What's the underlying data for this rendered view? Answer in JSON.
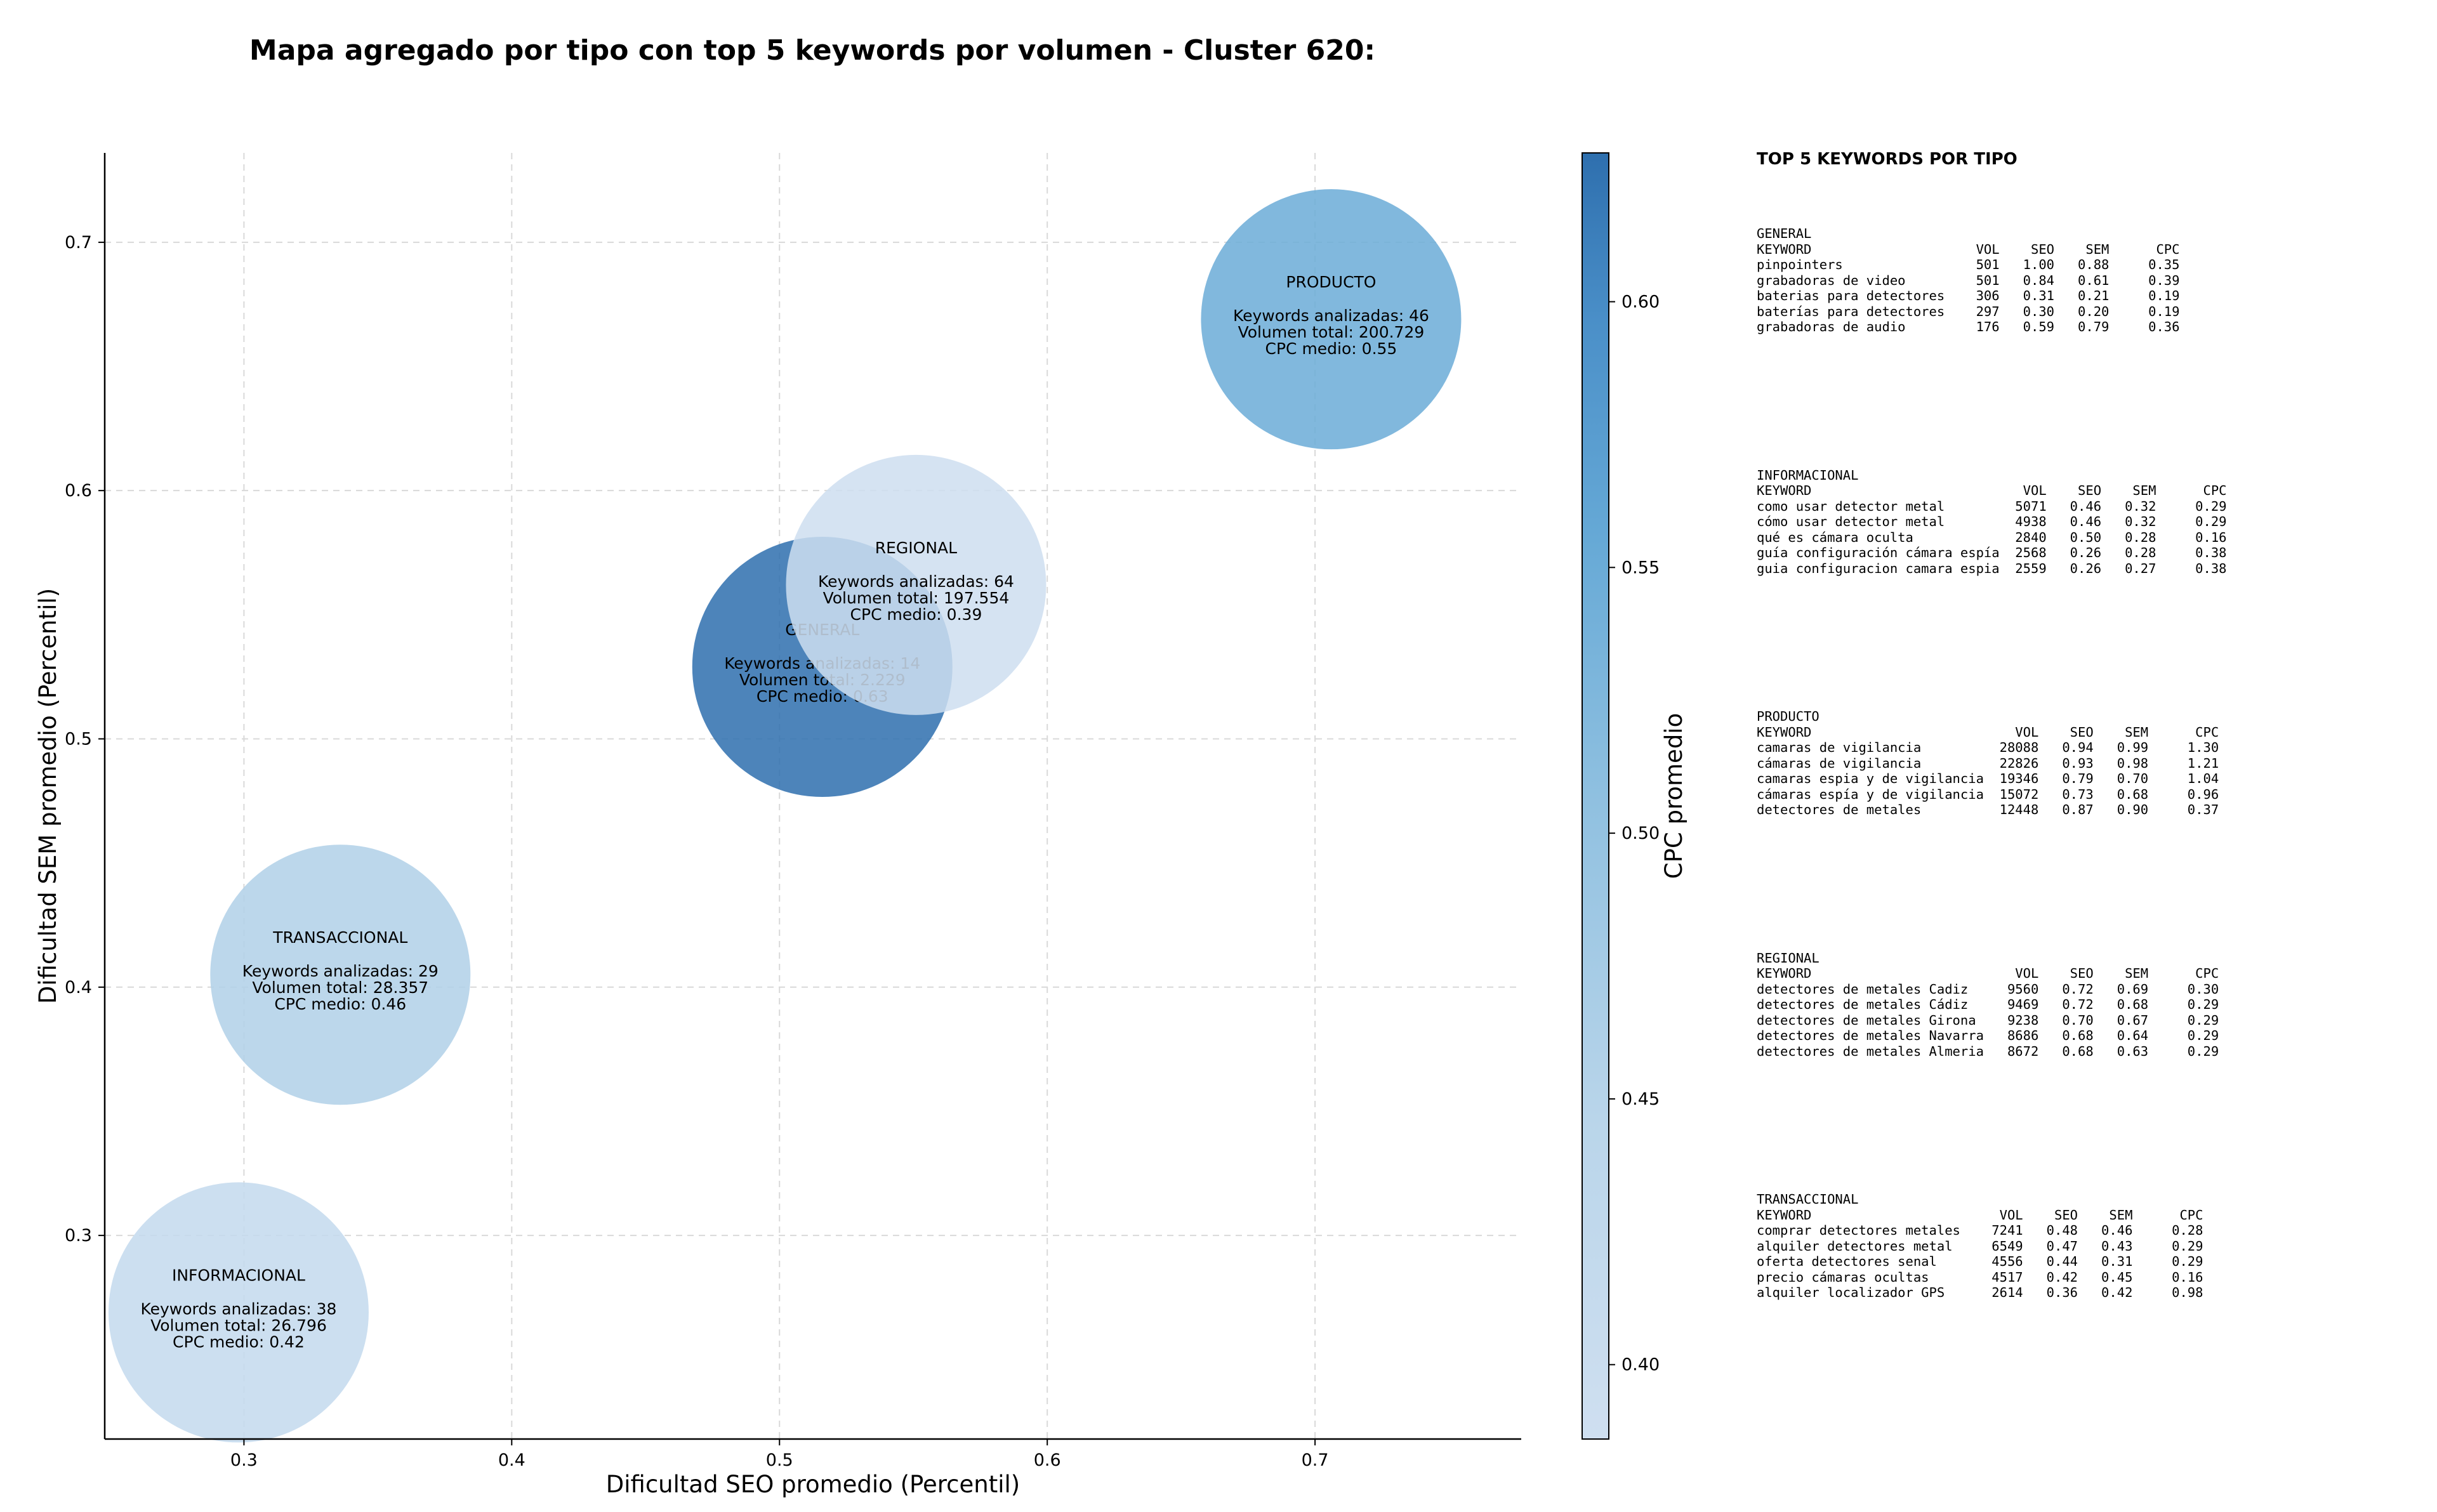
{
  "title": "Mapa agregado por tipo con top 5 keywords por volumen - Cluster 620:",
  "chart_data": {
    "type": "scatter",
    "title": "Mapa agregado por tipo con top 5 keywords por volumen - Cluster 620:",
    "xlabel": "Dificultad SEO promedio (Percentil)",
    "ylabel": "Dificultad SEM promedio (Percentil)",
    "xlim": [
      0.248,
      0.777
    ],
    "ylim": [
      0.218,
      0.736
    ],
    "x_ticks": [
      "0.3",
      "0.4",
      "0.5",
      "0.6",
      "0.7"
    ],
    "y_ticks": [
      "0.3",
      "0.4",
      "0.5",
      "0.6",
      "0.7"
    ],
    "grid": true,
    "colorbar": {
      "label": "CPC promedio",
      "range": [
        0.386,
        0.628
      ],
      "ticks": [
        "0.40",
        "0.45",
        "0.50",
        "0.55",
        "0.60"
      ],
      "color_low": "#cfdff0",
      "color_high": "#2e6fae"
    },
    "bubble_size_meaning": "Keywords analizadas",
    "points": [
      {
        "label": "INFORMACIONAL",
        "x": 0.298,
        "y": 0.269,
        "keywords": 38,
        "volumen": "26.796",
        "cpc": 0.42,
        "lines": [
          "Keywords analizadas: 38",
          "Volumen total: 26.796",
          "CPC medio: 0.42"
        ]
      },
      {
        "label": "TRANSACCIONAL",
        "x": 0.336,
        "y": 0.405,
        "keywords": 29,
        "volumen": "28.357",
        "cpc": 0.46,
        "lines": [
          "Keywords analizadas: 29",
          "Volumen total: 28.357",
          "CPC medio: 0.46"
        ]
      },
      {
        "label": "GENERAL",
        "x": 0.516,
        "y": 0.529,
        "keywords": 14,
        "volumen": "2.229",
        "cpc": 0.63,
        "lines": [
          "Keywords analizadas: 14",
          "Volumen total: 2.229",
          "CPC medio: 0.63"
        ]
      },
      {
        "label": "REGIONAL",
        "x": 0.551,
        "y": 0.562,
        "keywords": 64,
        "volumen": "197.554",
        "cpc": 0.39,
        "lines": [
          "Keywords analizadas: 64",
          "Volumen total: 197.554",
          "CPC medio: 0.39"
        ]
      },
      {
        "label": "PRODUCTO",
        "x": 0.706,
        "y": 0.669,
        "keywords": 46,
        "volumen": "200.729",
        "cpc": 0.55,
        "lines": [
          "Keywords analizadas: 46",
          "Volumen total: 200.729",
          "CPC medio: 0.55"
        ]
      }
    ]
  },
  "panel": {
    "title": "TOP 5 KEYWORDS POR TIPO",
    "sections": [
      {
        "name": "GENERAL",
        "header": "KEYWORD                     VOL    SEO    SEM      CPC",
        "rows": [
          "pinpointers                 501   1.00   0.88     0.35",
          "grabadoras de video         501   0.84   0.61     0.39",
          "baterias para detectores    306   0.31   0.21     0.19",
          "baterías para detectores    297   0.30   0.20     0.19",
          "grabadoras de audio         176   0.59   0.79     0.36"
        ]
      },
      {
        "name": "INFORMACIONAL",
        "header": "KEYWORD                           VOL    SEO    SEM      CPC",
        "rows": [
          "como usar detector metal         5071   0.46   0.32     0.29",
          "cómo usar detector metal         4938   0.46   0.32     0.29",
          "qué es cámara oculta             2840   0.50   0.28     0.16",
          "guía configuración cámara espía  2568   0.26   0.28     0.38",
          "guia configuracion camara espia  2559   0.26   0.27     0.38"
        ]
      },
      {
        "name": "PRODUCTO",
        "header": "KEYWORD                          VOL    SEO    SEM      CPC",
        "rows": [
          "camaras de vigilancia          28088   0.94   0.99     1.30",
          "cámaras de vigilancia          22826   0.93   0.98     1.21",
          "camaras espia y de vigilancia  19346   0.79   0.70     1.04",
          "cámaras espía y de vigilancia  15072   0.73   0.68     0.96",
          "detectores de metales          12448   0.87   0.90     0.37"
        ]
      },
      {
        "name": "REGIONAL",
        "header": "KEYWORD                          VOL    SEO    SEM      CPC",
        "rows": [
          "detectores de metales Cadiz     9560   0.72   0.69     0.30",
          "detectores de metales Cádiz     9469   0.72   0.68     0.29",
          "detectores de metales Girona    9238   0.70   0.67     0.29",
          "detectores de metales Navarra   8686   0.68   0.64     0.29",
          "detectores de metales Almeria   8672   0.68   0.63     0.29"
        ]
      },
      {
        "name": "TRANSACCIONAL",
        "header": "KEYWORD                        VOL    SEO    SEM      CPC",
        "rows": [
          "comprar detectores metales    7241   0.48   0.46     0.28",
          "alquiler detectores metal     6549   0.47   0.43     0.29",
          "oferta detectores senal       4556   0.44   0.31     0.29",
          "precio cámaras ocultas        4517   0.42   0.45     0.16",
          "alquiler localizador GPS      2614   0.36   0.42     0.98"
        ]
      }
    ]
  }
}
